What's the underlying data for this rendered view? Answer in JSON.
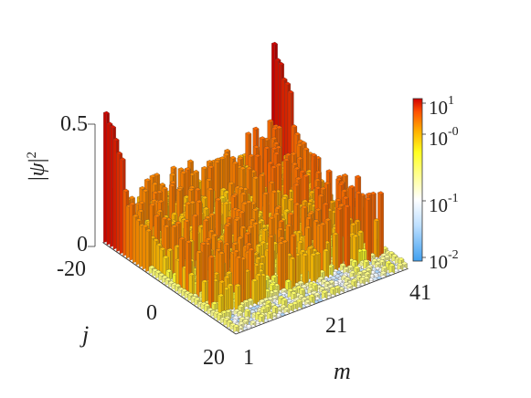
{
  "chart_data": {
    "type": "bar3d",
    "zlabel_html": "|<span style='font-style:italic'>ψ</span>|<sup style='font-size:15px'>2</sup>",
    "zlabel_text": "|ψ|2",
    "xlabel": "m",
    "ylabel": "j",
    "z_ticks": [
      "0",
      "0.5"
    ],
    "zlim": [
      0,
      0.5
    ],
    "m_ticks": [
      "1",
      "21",
      "41"
    ],
    "j_ticks": [
      "-20",
      "0",
      "20"
    ],
    "m_range": [
      1,
      41
    ],
    "j_range": [
      -20,
      20
    ],
    "colorbar": {
      "scale": "log",
      "range": [
        0.01,
        10
      ],
      "labels": [
        {
          "base": "10",
          "exp": "1",
          "value": 10
        },
        {
          "base": "10",
          "exp": "-0",
          "value": 1
        },
        {
          "base": "10",
          "exp": "-1",
          "value": 0.1
        },
        {
          "base": "10",
          "exp": "-2",
          "value": 0.01
        }
      ],
      "colors": [
        "#3fa0f0",
        "#ffffff",
        "#ffff30",
        "#ff9a00",
        "#cc0000"
      ]
    },
    "peaks": [
      {
        "m": 1,
        "j": -20,
        "value": 0.55
      },
      {
        "m": 41,
        "j": -20,
        "value": 0.55
      }
    ]
  }
}
